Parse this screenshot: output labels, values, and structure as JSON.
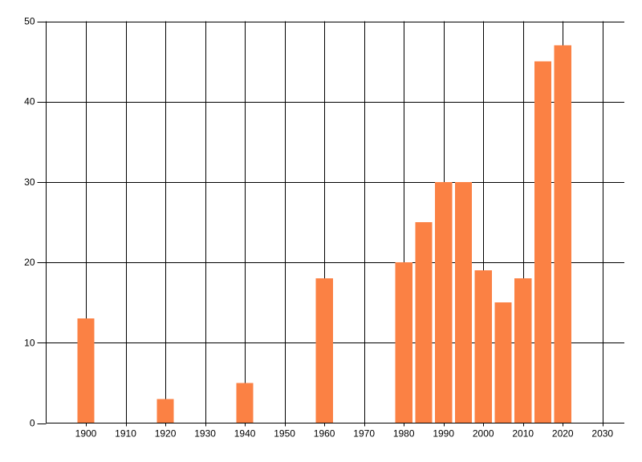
{
  "window": {
    "background": "#ffffff"
  },
  "chart_data": {
    "type": "bar",
    "title": "",
    "xlabel": "",
    "ylabel": "",
    "categories": [
      1900,
      1920,
      1940,
      1960,
      1980,
      1985,
      1990,
      1995,
      2000,
      2005,
      2010,
      2015,
      2020
    ],
    "values": [
      13,
      3,
      5,
      18,
      20,
      25,
      30,
      30,
      19,
      15,
      18,
      45,
      47
    ],
    "x_ticks": [
      1900,
      1910,
      1920,
      1930,
      1940,
      1950,
      1960,
      1970,
      1980,
      1990,
      2000,
      2010,
      2020,
      2030
    ],
    "y_ticks": [
      0,
      10,
      20,
      30,
      40,
      50
    ],
    "xlim": [
      1890,
      2035.5
    ],
    "ylim": [
      0,
      50
    ],
    "grid": "both",
    "legend": "none",
    "bar_color": "#fb8144",
    "axis_color": "#000000",
    "tick_label_color": "#000000",
    "background_color": "#ffffff",
    "bar_width_years": 4.3
  }
}
